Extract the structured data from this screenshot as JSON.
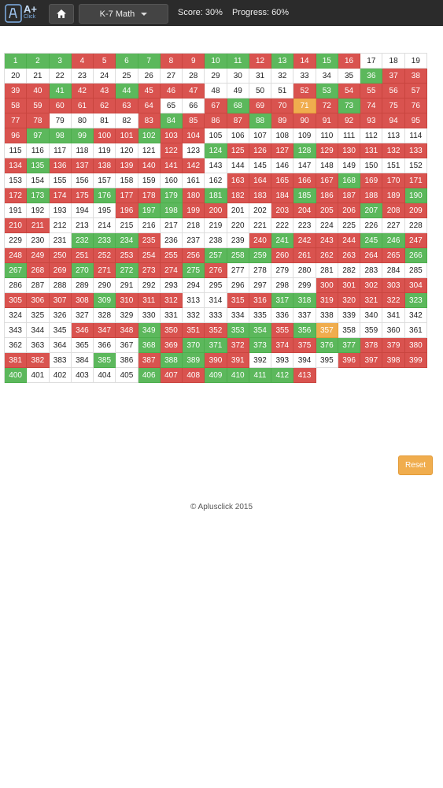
{
  "header": {
    "logo_text": "A+",
    "logo_subtext": "Click",
    "grade_label": "K-7 Math",
    "score_text": "Score: 30%",
    "progress_text": "Progress: 60%"
  },
  "colors": {
    "correct": "#5cb85c",
    "wrong": "#d9534f",
    "current": "#f0ad4e",
    "topbar": "#2b2b2b"
  },
  "grid": {
    "first": 1,
    "last": 413,
    "correct": [
      1,
      2,
      3,
      6,
      7,
      10,
      11,
      13,
      15,
      36,
      41,
      44,
      53,
      68,
      73,
      84,
      88,
      97,
      98,
      99,
      102,
      124,
      128,
      135,
      168,
      173,
      176,
      179,
      181,
      185,
      190,
      197,
      198,
      207,
      232,
      233,
      234,
      241,
      245,
      246,
      257,
      258,
      259,
      266,
      267,
      270,
      272,
      275,
      309,
      317,
      318,
      323,
      349,
      353,
      354,
      356,
      368,
      370,
      371,
      373,
      376,
      377,
      385,
      388,
      389,
      400,
      406,
      409,
      410,
      411,
      412
    ],
    "wrong": [
      4,
      5,
      8,
      9,
      12,
      14,
      16,
      37,
      38,
      39,
      40,
      42,
      43,
      45,
      46,
      47,
      52,
      54,
      55,
      56,
      57,
      58,
      59,
      60,
      61,
      62,
      63,
      64,
      67,
      69,
      70,
      72,
      74,
      75,
      76,
      77,
      78,
      83,
      85,
      86,
      87,
      89,
      90,
      91,
      92,
      93,
      94,
      95,
      96,
      100,
      101,
      103,
      104,
      122,
      125,
      126,
      127,
      129,
      130,
      131,
      132,
      133,
      134,
      136,
      137,
      138,
      139,
      140,
      141,
      142,
      163,
      164,
      165,
      166,
      167,
      169,
      170,
      171,
      172,
      174,
      175,
      177,
      178,
      180,
      182,
      183,
      184,
      186,
      187,
      188,
      189,
      196,
      199,
      200,
      203,
      204,
      205,
      206,
      208,
      209,
      210,
      211,
      235,
      240,
      242,
      243,
      244,
      247,
      248,
      249,
      250,
      251,
      252,
      253,
      254,
      255,
      256,
      260,
      261,
      262,
      263,
      264,
      265,
      268,
      269,
      271,
      273,
      274,
      276,
      300,
      301,
      302,
      303,
      304,
      305,
      306,
      307,
      308,
      310,
      311,
      312,
      315,
      316,
      319,
      320,
      321,
      322,
      346,
      347,
      348,
      350,
      351,
      352,
      355,
      369,
      372,
      374,
      375,
      378,
      379,
      380,
      381,
      382,
      387,
      390,
      391,
      396,
      397,
      398,
      399,
      407,
      408,
      413
    ],
    "current": [
      71,
      357
    ]
  },
  "actions": {
    "reset_label": "Reset"
  },
  "footer": {
    "copyright": "© Aplusclick 2015"
  }
}
